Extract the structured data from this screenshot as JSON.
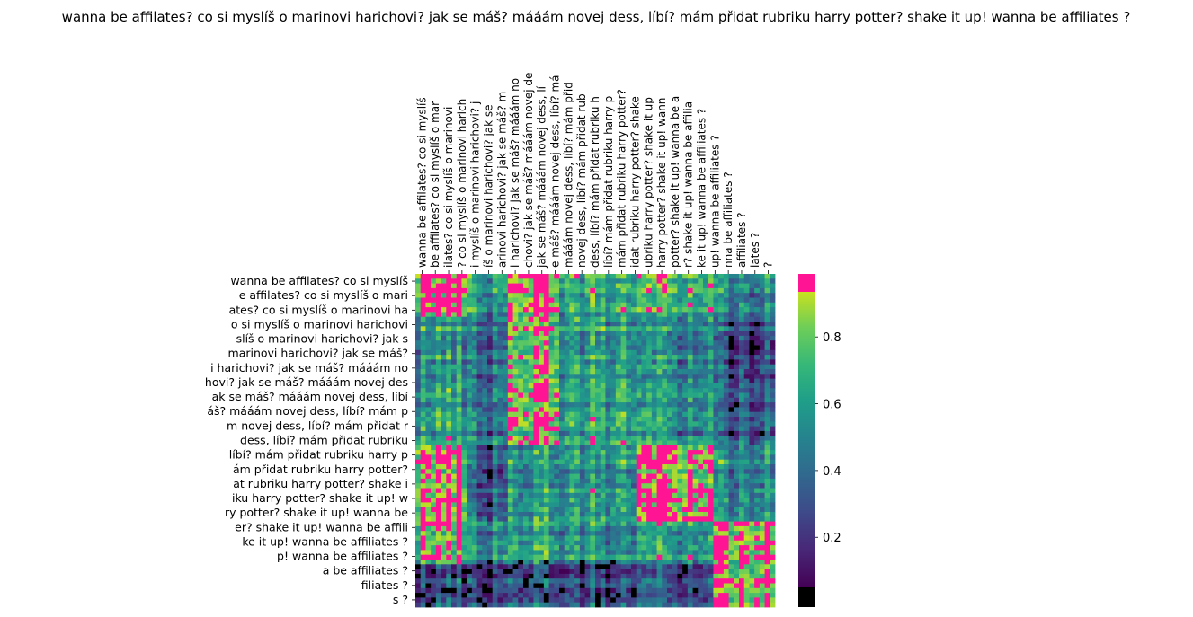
{
  "chart_data": {
    "type": "heatmap",
    "title": "wanna be affilates? co si myslíš o marinovi harichovi? jak se máš? mááám novej dess, líbí? mám přidat rubriku harry potter? shake it up! wanna be affiliates ?",
    "xlabel": "",
    "ylabel": "",
    "x_axis_position": "top",
    "x_tick_rotation_deg": 90,
    "x_tick_labels": [
      "wanna be affilates? co si myslíš",
      "be affilates? co si myslíš o mar",
      "ilates? co si myslíš o marinovi",
      "? co si myslíš o marinovi harich",
      "i myslíš o marinovi harichovi? j",
      "íš o marinovi harichovi? jak se",
      "arinovi harichovi? jak se máš? m",
      "i harichovi? jak se máš? mááám no",
      "chovi? jak se máš? mááám novej de",
      "jak se máš? mááám novej dess, lí",
      "e máš? mááám novej dess, líbí? má",
      "mááám novej dess, líbí? mám přid",
      "novej dess, líbí? mám přidat rub",
      "dess, líbí? mám přidat rubriku h",
      "líbí? mám přidat rubriku harry p",
      "mám přidat rubriku harry potter?",
      "idat rubriku harry potter? shake",
      "ubriku harry potter? shake it up",
      "harry potter? shake it up! wann",
      "potter? shake it up! wanna be a",
      "r? shake it up! wanna be affilia",
      "ke it up! wanna be affiliates ?",
      "up! wanna be affiliates ?",
      "nna be affiliates ?",
      "affiliates ?",
      "iates ?",
      "?"
    ],
    "y_tick_labels": [
      "wanna be affilates? co si myslíš",
      "e affilates? co si myslíš o mari",
      "ates? co si myslíš o marinovi ha",
      "o si myslíš o marinovi harichovi",
      "slíš o marinovi harichovi? jak s",
      "marinovi harichovi? jak se máš?",
      "i harichovi? jak se máš? mááám no",
      "hovi? jak se máš? mááám novej des",
      "ak se máš? mááám novej dess, líbí",
      "áš? mááám novej dess, líbí? mám p",
      "m novej dess, líbí? mám přidat r",
      "dess, líbí? mám přidat rubriku",
      "líbí? mám přidat rubriku harry p",
      "ám přidat rubriku harry potter?",
      "at rubriku harry potter? shake i",
      "iku harry potter? shake it up! w",
      "ry potter? shake it up! wanna be",
      "er? shake it up! wanna be affili",
      "ke it up! wanna be affiliates ?",
      "p! wanna be affiliates ?",
      "a be affiliates ?",
      "filiates ?",
      "s ?"
    ],
    "colorbar": {
      "ticks": [
        "0.2",
        "0.4",
        "0.6",
        "0.8"
      ],
      "tick_values": [
        0.2,
        0.4,
        0.6,
        0.8
      ],
      "min": 0.0,
      "max": 1.0,
      "under_color": "#000000",
      "over_color": "#ff1493",
      "colormap": "viridis",
      "clipped_range": [
        0.05,
        0.935
      ]
    },
    "grid": false,
    "legend": "none",
    "block_summary": {
      "description_rows": [
        "rows 1-3",
        "rows 4-12",
        "rows 13-17",
        "rows 18-20",
        "rows 21-23"
      ],
      "description_cols": [
        "cols 1-4",
        "cols 5-7",
        "cols 8-11",
        "cols 12-17",
        "cols 18-23",
        "cols 24-27"
      ],
      "values": [
        [
          0.95,
          0.55,
          0.95,
          0.65,
          0.7,
          0.5
        ],
        [
          0.6,
          0.45,
          0.9,
          0.65,
          0.55,
          0.35
        ],
        [
          0.95,
          0.35,
          0.6,
          0.6,
          0.95,
          0.55
        ],
        [
          0.85,
          0.55,
          0.65,
          0.55,
          0.6,
          0.95
        ],
        [
          0.3,
          0.25,
          0.35,
          0.3,
          0.3,
          0.95
        ]
      ]
    }
  }
}
